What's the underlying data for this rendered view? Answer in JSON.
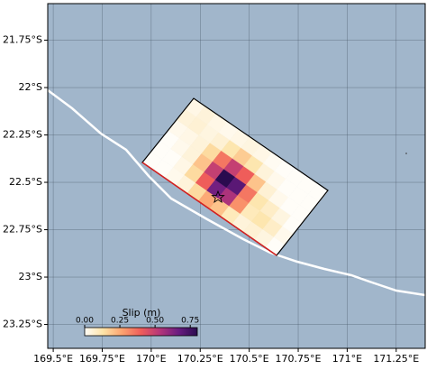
{
  "chart_data": {
    "type": "slipmap",
    "xlim": [
      169.472,
      171.398
    ],
    "ylim": [
      -23.376,
      -21.557
    ],
    "grid": true,
    "xticks": [
      {
        "value": 169.5,
        "label": "169.5°E"
      },
      {
        "value": 169.75,
        "label": "169.75°E"
      },
      {
        "value": 170,
        "label": "170°E"
      },
      {
        "value": 170.25,
        "label": "170.25°E"
      },
      {
        "value": 170.5,
        "label": "170.5°E"
      },
      {
        "value": 170.75,
        "label": "170.75°E"
      },
      {
        "value": 171,
        "label": "171°E"
      },
      {
        "value": 171.25,
        "label": "171.25°E"
      }
    ],
    "yticks": [
      {
        "value": -21.75,
        "label": "21.75°S"
      },
      {
        "value": -22,
        "label": "22°S"
      },
      {
        "value": -22.25,
        "label": "22.25°S"
      },
      {
        "value": -22.5,
        "label": "22.5°S"
      },
      {
        "value": -22.75,
        "label": "22.75°S"
      },
      {
        "value": -23,
        "label": "23°S"
      },
      {
        "value": -23.25,
        "label": "23.25°S"
      }
    ],
    "slip": {
      "label": "Slip (m)",
      "clim": [
        0,
        0.8
      ],
      "ticks": [
        {
          "value": 0,
          "label": "0.00"
        },
        {
          "value": 0.25,
          "label": "0.25"
        },
        {
          "value": 0.5,
          "label": "0.50"
        },
        {
          "value": 0.75,
          "label": "0.75"
        }
      ],
      "colormap": [
        "#fffdf8",
        "#fde3a7",
        "#fca26f",
        "#ef5d5a",
        "#b5367a",
        "#6a1c81",
        "#2a0b4f"
      ],
      "values": [
        [
          0,
          0,
          0.02,
          0.05,
          0.15,
          0.25,
          0.2,
          0.1,
          0.05,
          0.06,
          0.04,
          0
        ],
        [
          0,
          0,
          0.03,
          0.15,
          0.4,
          0.65,
          0.55,
          0.3,
          0.1,
          0.12,
          0.08,
          0.02
        ],
        [
          0,
          0.02,
          0.05,
          0.2,
          0.5,
          0.8,
          0.7,
          0.35,
          0.12,
          0.08,
          0.04,
          0
        ],
        [
          0.02,
          0.03,
          0.05,
          0.15,
          0.35,
          0.5,
          0.4,
          0.2,
          0.06,
          0.02,
          0,
          0
        ],
        [
          0.05,
          0.06,
          0.04,
          0.06,
          0.12,
          0.18,
          0.12,
          0.05,
          0.02,
          0,
          0,
          0
        ],
        [
          0.03,
          0.05,
          0.03,
          0.02,
          0.03,
          0.04,
          0.03,
          0.01,
          0,
          0,
          0,
          0
        ]
      ]
    }
  }
}
